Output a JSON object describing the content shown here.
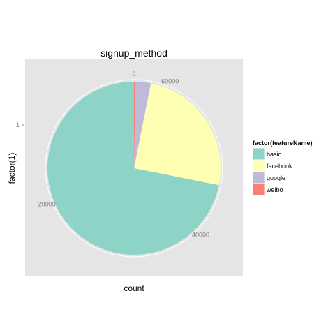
{
  "chart_data": {
    "type": "pie",
    "title": "signup_method",
    "xlabel": "count",
    "ylabel": "factor(1)",
    "y_tick_labels": [
      "1"
    ],
    "radial_ticks": [
      0,
      20000,
      40000,
      60000
    ],
    "radial_tick_labels": [
      "0",
      "20000",
      "40000",
      "60000"
    ],
    "total": 64000,
    "categories": [
      "basic",
      "facebook",
      "google",
      "weibo"
    ],
    "values": [
      46000,
      16000,
      1800,
      200
    ],
    "colors": [
      "#8DD3C7",
      "#FFFFB3",
      "#BEBADA",
      "#FB8072"
    ],
    "legend": {
      "title": "factor(featureName)",
      "position": "right"
    },
    "grid": true,
    "panel_background": "#E5E5E5",
    "gridline_color": "#FFFFFF"
  }
}
